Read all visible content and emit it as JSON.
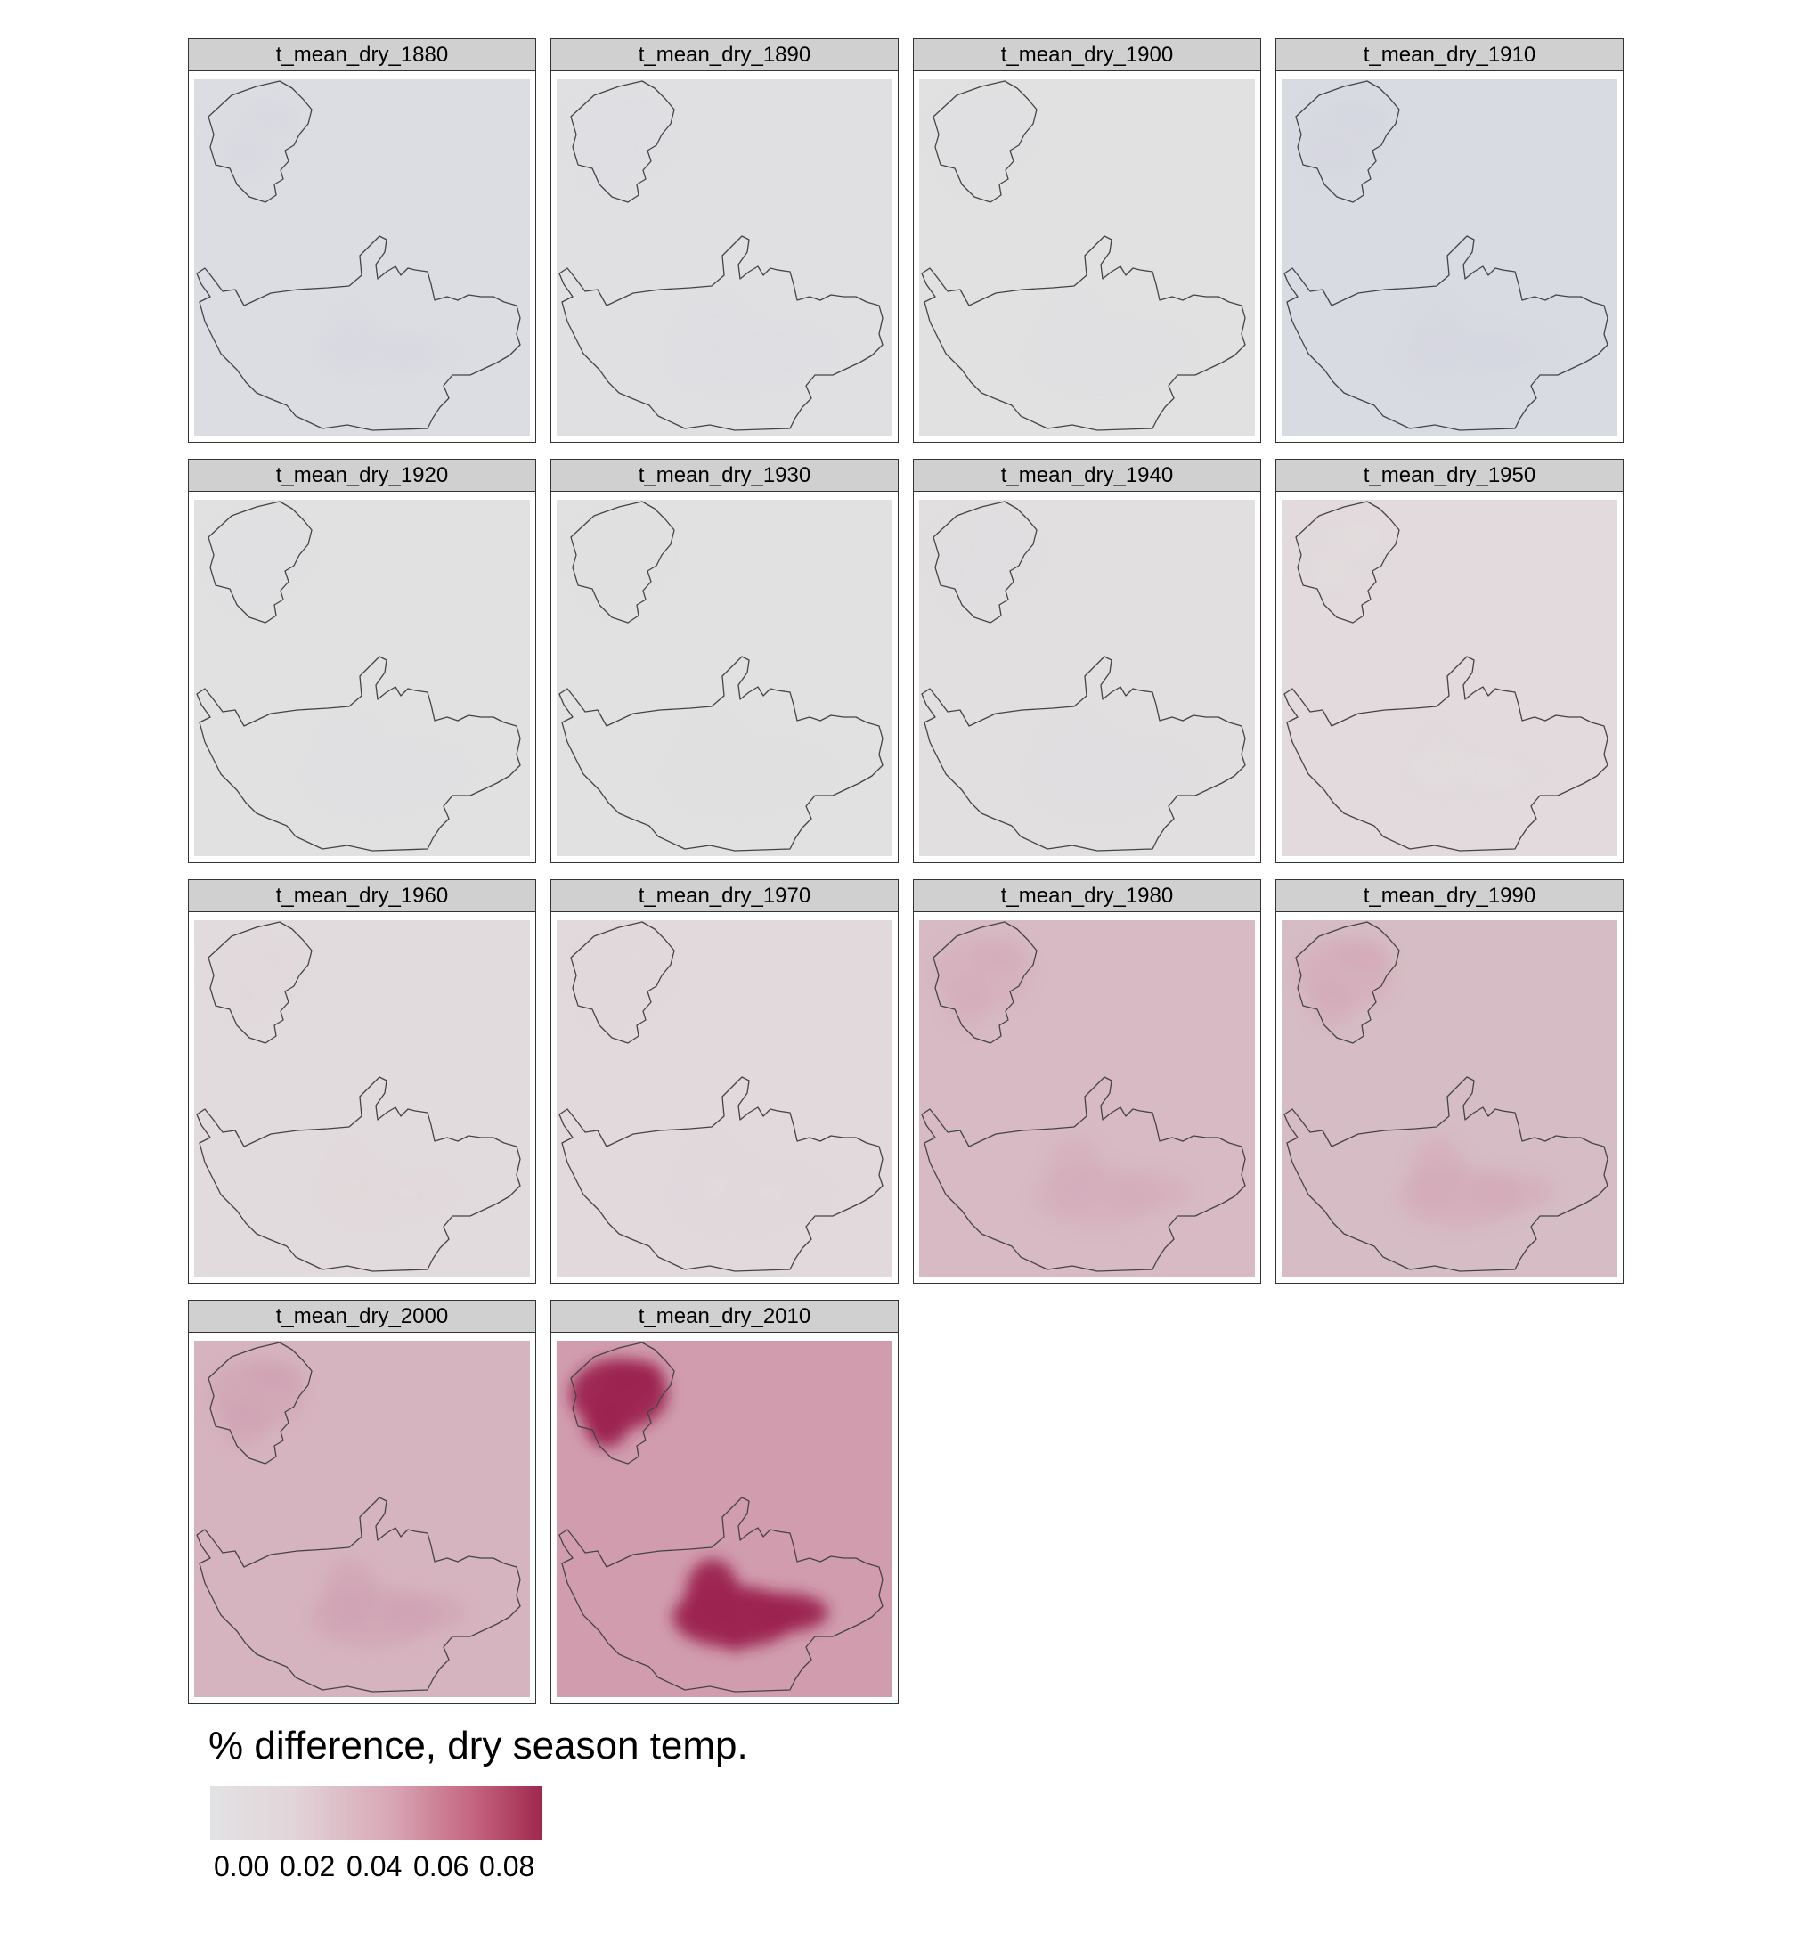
{
  "legend": {
    "title": "% difference, dry season temp.",
    "ticks": [
      "0.00",
      "0.02",
      "0.04",
      "0.06",
      "0.08"
    ],
    "range": [
      0.0,
      0.09
    ],
    "colors": [
      "#e2e2e4",
      "#e2d5d9",
      "#d8a6b5",
      "#c4637f",
      "#a0284e"
    ]
  },
  "panels": [
    {
      "title": "t_mean_dry_1880",
      "base_color": "#dcdde2",
      "hotspot_color": "#d6d8e1",
      "hotspot_level": 0.0
    },
    {
      "title": "t_mean_dry_1890",
      "base_color": "#e0e0e3",
      "hotspot_color": "#dcdde2",
      "hotspot_level": 0.0
    },
    {
      "title": "t_mean_dry_1900",
      "base_color": "#e1e1e2",
      "hotspot_color": "#dfdfe2",
      "hotspot_level": 0.0
    },
    {
      "title": "t_mean_dry_1910",
      "base_color": "#d9dbe2",
      "hotspot_color": "#d2d5e0",
      "hotspot_level": 0.0
    },
    {
      "title": "t_mean_dry_1920",
      "base_color": "#e1e1e2",
      "hotspot_color": "#dfdfe2",
      "hotspot_level": 0.0
    },
    {
      "title": "t_mean_dry_1930",
      "base_color": "#e1e1e1",
      "hotspot_color": "#e0e0e1",
      "hotspot_level": 0.0
    },
    {
      "title": "t_mean_dry_1940",
      "base_color": "#e1dfe0",
      "hotspot_color": "#e0dddf",
      "hotspot_level": 0.0
    },
    {
      "title": "t_mean_dry_1950",
      "base_color": "#e2dadd",
      "hotspot_color": "#e0dbde",
      "hotspot_level": 0.005
    },
    {
      "title": "t_mean_dry_1960",
      "base_color": "#e1dbde",
      "hotspot_color": "#e3d6da",
      "hotspot_level": 0.005
    },
    {
      "title": "t_mean_dry_1970",
      "base_color": "#e1d9dc",
      "hotspot_color": "#dfdadd",
      "hotspot_level": 0.005
    },
    {
      "title": "t_mean_dry_1980",
      "base_color": "#d7bac3",
      "hotspot_color": "#d4a9b7",
      "hotspot_level": 0.03
    },
    {
      "title": "t_mean_dry_1990",
      "base_color": "#d6bcc4",
      "hotspot_color": "#d3a6b5",
      "hotspot_level": 0.03
    },
    {
      "title": "t_mean_dry_2000",
      "base_color": "#d6b4bf",
      "hotspot_color": "#d09fb1",
      "hotspot_level": 0.035
    },
    {
      "title": "t_mean_dry_2010",
      "base_color": "#d19dae",
      "hotspot_color": "#9c2450",
      "hotspot_level": 0.09
    }
  ]
}
